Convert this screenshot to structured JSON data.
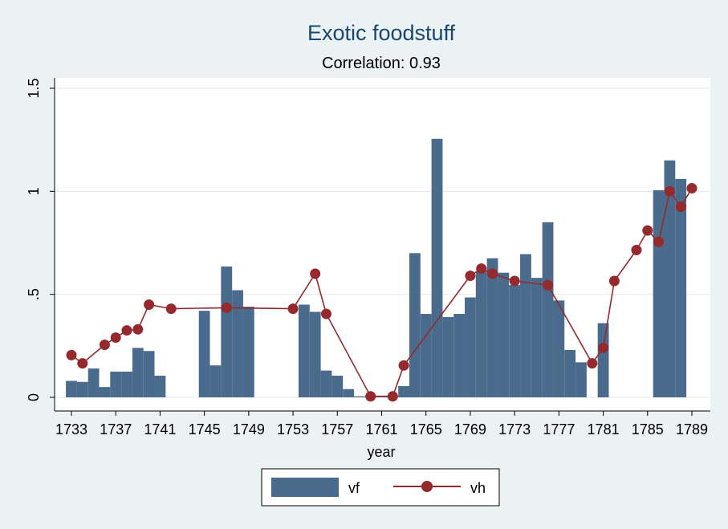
{
  "chart_data": {
    "type": "bar",
    "title": "Exotic foodstuff",
    "subtitle": "Correlation: 0.93",
    "xlabel": "year",
    "ylabel": "",
    "xlim": [
      1732,
      1790
    ],
    "ylim": [
      0,
      1.5
    ],
    "x_ticks": [
      1733,
      1737,
      1741,
      1745,
      1749,
      1753,
      1757,
      1761,
      1765,
      1769,
      1773,
      1777,
      1781,
      1785,
      1789
    ],
    "y_ticks": [
      {
        "value": 0,
        "label": "0"
      },
      {
        "value": 0.5,
        "label": ".5"
      },
      {
        "value": 1,
        "label": "1"
      },
      {
        "value": 1.5,
        "label": "1.5"
      }
    ],
    "grid": true,
    "legend_position": "bottom",
    "colors": {
      "vf": "#4a6b8c",
      "vh": "#94292e",
      "background": "#eaf2f3",
      "plot_background": "#ffffff"
    },
    "series": [
      {
        "name": "vf",
        "kind": "bar",
        "points": [
          [
            1733,
            0.08
          ],
          [
            1734,
            0.075
          ],
          [
            1735,
            0.14
          ],
          [
            1736,
            0.05
          ],
          [
            1737,
            0.125
          ],
          [
            1738,
            0.125
          ],
          [
            1739,
            0.24
          ],
          [
            1740,
            0.225
          ],
          [
            1741,
            0.105
          ],
          [
            1745,
            0.42
          ],
          [
            1746,
            0.155
          ],
          [
            1747,
            0.635
          ],
          [
            1748,
            0.52
          ],
          [
            1749,
            0.44
          ],
          [
            1754,
            0.45
          ],
          [
            1755,
            0.415
          ],
          [
            1756,
            0.13
          ],
          [
            1757,
            0.105
          ],
          [
            1758,
            0.04
          ],
          [
            1759,
            0.005
          ],
          [
            1760,
            0.005
          ],
          [
            1761,
            0.005
          ],
          [
            1762,
            0.005
          ],
          [
            1763,
            0.055
          ],
          [
            1764,
            0.7
          ],
          [
            1765,
            0.405
          ],
          [
            1766,
            1.255
          ],
          [
            1767,
            0.39
          ],
          [
            1768,
            0.405
          ],
          [
            1769,
            0.485
          ],
          [
            1770,
            0.61
          ],
          [
            1771,
            0.675
          ],
          [
            1772,
            0.605
          ],
          [
            1773,
            0.545
          ],
          [
            1774,
            0.695
          ],
          [
            1775,
            0.58
          ],
          [
            1776,
            0.85
          ],
          [
            1777,
            0.47
          ],
          [
            1778,
            0.23
          ],
          [
            1779,
            0.17
          ],
          [
            1781,
            0.36
          ],
          [
            1786,
            1.005
          ],
          [
            1787,
            1.15
          ],
          [
            1788,
            1.06
          ]
        ]
      },
      {
        "name": "vh",
        "kind": "line",
        "points": [
          [
            1733,
            0.205
          ],
          [
            1734,
            0.165
          ],
          [
            1736,
            0.255
          ],
          [
            1737,
            0.29
          ],
          [
            1738,
            0.325
          ],
          [
            1739,
            0.33
          ],
          [
            1740,
            0.45
          ],
          [
            1742,
            0.43
          ],
          [
            1747,
            0.435
          ],
          [
            1753,
            0.43
          ],
          [
            1755,
            0.6
          ],
          [
            1756,
            0.405
          ],
          [
            1760,
            0.005
          ],
          [
            1762,
            0.005
          ],
          [
            1763,
            0.155
          ],
          [
            1769,
            0.59
          ],
          [
            1770,
            0.625
          ],
          [
            1771,
            0.6
          ],
          [
            1773,
            0.565
          ],
          [
            1776,
            0.545
          ],
          [
            1780,
            0.165
          ],
          [
            1781,
            0.24
          ],
          [
            1782,
            0.565
          ],
          [
            1784,
            0.715
          ],
          [
            1785,
            0.81
          ],
          [
            1786,
            0.755
          ],
          [
            1787,
            1.0
          ],
          [
            1788,
            0.925
          ],
          [
            1789,
            1.015
          ]
        ]
      }
    ]
  }
}
